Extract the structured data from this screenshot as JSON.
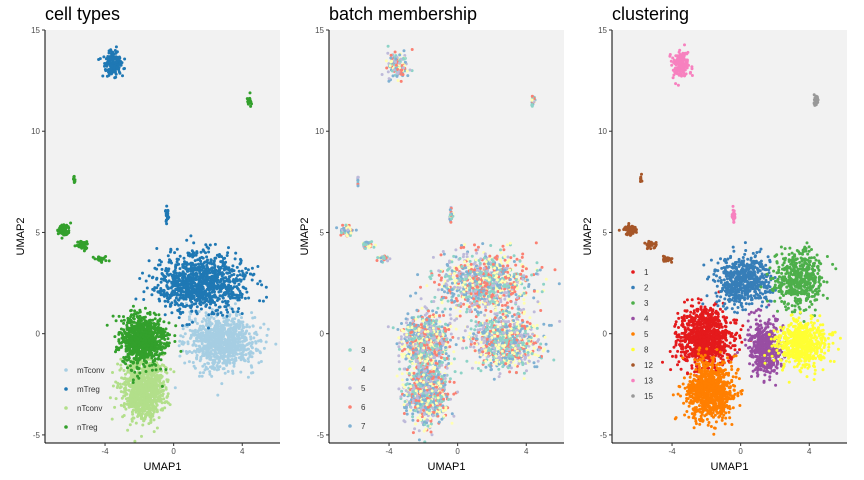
{
  "chart_data": [
    {
      "type": "scatter",
      "title": "cell types",
      "xlabel": "UMAP1",
      "ylabel": "UMAP2",
      "xlim": [
        -7.5,
        6.2
      ],
      "ylim": [
        -5.4,
        15
      ],
      "xticks": [
        -4,
        0,
        4
      ],
      "yticks": [
        -5,
        0,
        5,
        10,
        15
      ],
      "legend_position": "bottom-left",
      "panel_background": "#f2f2f2",
      "series": [
        {
          "name": "mTconv",
          "color": "#a6cee3",
          "clusters": [
            {
              "cx": 2.8,
              "cy": -0.4,
              "rx": 2.0,
              "ry": 1.3,
              "n": 900
            }
          ]
        },
        {
          "name": "mTreg",
          "color": "#1f78b4",
          "clusters": [
            {
              "cx": 1.6,
              "cy": 2.5,
              "rx": 2.6,
              "ry": 1.4,
              "n": 1000
            },
            {
              "cx": -3.5,
              "cy": 13.3,
              "rx": 0.55,
              "ry": 0.6,
              "n": 160
            },
            {
              "cx": -0.4,
              "cy": 5.8,
              "rx": 0.1,
              "ry": 0.4,
              "n": 25
            }
          ]
        },
        {
          "name": "nTconv",
          "color": "#b2df8a",
          "clusters": [
            {
              "cx": -1.8,
              "cy": -2.8,
              "rx": 1.2,
              "ry": 1.5,
              "n": 900
            }
          ]
        },
        {
          "name": "nTreg",
          "color": "#33a02c",
          "clusters": [
            {
              "cx": -1.8,
              "cy": -0.3,
              "rx": 1.3,
              "ry": 1.2,
              "n": 900
            },
            {
              "cx": -6.4,
              "cy": 5.1,
              "rx": 0.35,
              "ry": 0.25,
              "n": 70
            },
            {
              "cx": -5.3,
              "cy": 4.4,
              "rx": 0.35,
              "ry": 0.2,
              "n": 40
            },
            {
              "cx": -4.3,
              "cy": 3.7,
              "rx": 0.35,
              "ry": 0.18,
              "n": 25
            },
            {
              "cx": 4.4,
              "cy": 11.5,
              "rx": 0.12,
              "ry": 0.25,
              "n": 30
            },
            {
              "cx": -5.8,
              "cy": 7.6,
              "rx": 0.06,
              "ry": 0.2,
              "n": 10
            }
          ]
        }
      ]
    },
    {
      "type": "scatter",
      "title": "batch membership",
      "xlabel": "UMAP1",
      "ylabel": "UMAP2",
      "xlim": [
        -7.5,
        6.2
      ],
      "ylim": [
        -5.4,
        15
      ],
      "xticks": [
        -4,
        0,
        4
      ],
      "yticks": [
        -5,
        0,
        5,
        10,
        15
      ],
      "legend_position": "bottom-left",
      "panel_background": "#f2f2f2",
      "mixed": true,
      "series": [
        {
          "name": "3",
          "color": "#8dd3c7"
        },
        {
          "name": "4",
          "color": "#ffffb3"
        },
        {
          "name": "5",
          "color": "#bebada"
        },
        {
          "name": "6",
          "color": "#fb8072"
        },
        {
          "name": "7",
          "color": "#80b1d3"
        }
      ]
    },
    {
      "type": "scatter",
      "title": "clustering",
      "xlabel": "UMAP1",
      "ylabel": "UMAP2",
      "xlim": [
        -7.5,
        6.2
      ],
      "ylim": [
        -5.4,
        15
      ],
      "xticks": [
        -4,
        0,
        4
      ],
      "yticks": [
        -5,
        0,
        5,
        10,
        15
      ],
      "legend_position": "left",
      "panel_background": "#f2f2f2",
      "series": [
        {
          "name": "1",
          "color": "#e41a1c",
          "clusters": [
            {
              "cx": -2.1,
              "cy": -0.2,
              "rx": 1.5,
              "ry": 1.4,
              "n": 1000
            }
          ]
        },
        {
          "name": "2",
          "color": "#377eb8",
          "clusters": [
            {
              "cx": 0.2,
              "cy": 2.6,
              "rx": 1.6,
              "ry": 1.2,
              "n": 600
            }
          ]
        },
        {
          "name": "3",
          "color": "#4daf4a",
          "clusters": [
            {
              "cx": 3.4,
              "cy": 2.7,
              "rx": 1.4,
              "ry": 1.4,
              "n": 500
            }
          ]
        },
        {
          "name": "4",
          "color": "#984ea3",
          "clusters": [
            {
              "cx": 1.4,
              "cy": -0.7,
              "rx": 0.9,
              "ry": 1.3,
              "n": 500
            }
          ]
        },
        {
          "name": "5",
          "color": "#ff7f00",
          "clusters": [
            {
              "cx": -1.8,
              "cy": -2.8,
              "rx": 1.3,
              "ry": 1.4,
              "n": 900
            }
          ]
        },
        {
          "name": "8",
          "color": "#ffff33",
          "clusters": [
            {
              "cx": 3.5,
              "cy": -0.5,
              "rx": 1.5,
              "ry": 1.1,
              "n": 600
            }
          ]
        },
        {
          "name": "12",
          "color": "#a65628",
          "clusters": [
            {
              "cx": -6.4,
              "cy": 5.1,
              "rx": 0.35,
              "ry": 0.25,
              "n": 70
            },
            {
              "cx": -5.3,
              "cy": 4.4,
              "rx": 0.35,
              "ry": 0.2,
              "n": 40
            },
            {
              "cx": -4.3,
              "cy": 3.7,
              "rx": 0.35,
              "ry": 0.18,
              "n": 25
            },
            {
              "cx": -5.8,
              "cy": 7.6,
              "rx": 0.06,
              "ry": 0.2,
              "n": 10
            }
          ]
        },
        {
          "name": "13",
          "color": "#f781bf",
          "clusters": [
            {
              "cx": -3.5,
              "cy": 13.3,
              "rx": 0.55,
              "ry": 0.6,
              "n": 160
            },
            {
              "cx": -0.4,
              "cy": 5.8,
              "rx": 0.1,
              "ry": 0.4,
              "n": 25
            }
          ]
        },
        {
          "name": "15",
          "color": "#999999",
          "clusters": [
            {
              "cx": 4.4,
              "cy": 11.5,
              "rx": 0.12,
              "ry": 0.25,
              "n": 30
            }
          ]
        }
      ]
    }
  ]
}
